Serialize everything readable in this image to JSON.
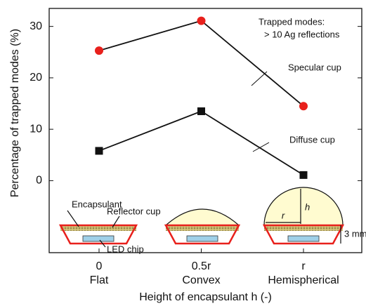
{
  "chart_data": {
    "type": "line",
    "ylabel": "Percentage of trapped modes (%)",
    "xlabel": "Height of encapsulant h (-)",
    "categories": [
      "0",
      "0.5r",
      "r"
    ],
    "category_names": [
      "Flat",
      "Convex",
      "Hemispherical"
    ],
    "ylim": [
      -14,
      33.5
    ],
    "yticks": [
      0,
      10,
      20,
      30
    ],
    "series": [
      {
        "name": "Specular cup",
        "color": "#e8201c",
        "marker": "circle",
        "values": [
          25.3,
          31.1,
          14.5
        ]
      },
      {
        "name": "Diffuse cup",
        "color": "#111111",
        "marker": "square",
        "values": [
          5.8,
          13.5,
          1.1
        ]
      }
    ],
    "note": [
      "Trapped modes:",
      "> 10 Ag reflections"
    ],
    "diagram_labels": [
      "Encapsulant",
      "Reflector cup",
      "LED chip",
      "h",
      "r",
      "3 mm"
    ]
  }
}
